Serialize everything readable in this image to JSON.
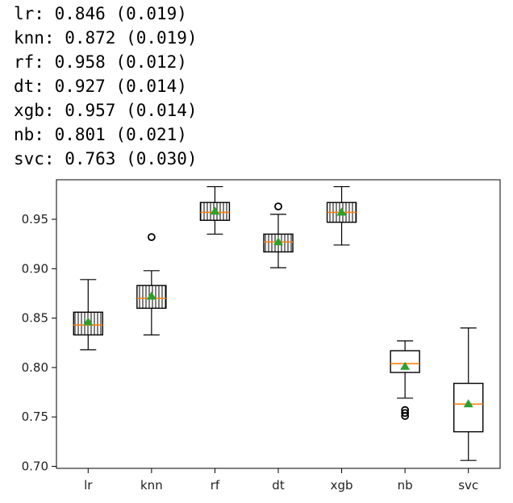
{
  "output_lines": [
    "lr: 0.846 (0.019)",
    "knn: 0.872 (0.019)",
    "rf: 0.958 (0.012)",
    "dt: 0.927 (0.014)",
    "xgb: 0.957 (0.014)",
    "nb: 0.801 (0.021)",
    "svc: 0.763 (0.030)"
  ],
  "chart_data": {
    "type": "boxplot",
    "title": "",
    "xlabel": "",
    "ylabel": "",
    "categories": [
      "lr",
      "knn",
      "rf",
      "dt",
      "xgb",
      "nb",
      "svc"
    ],
    "ylim": [
      0.698,
      0.99
    ],
    "yticks": [
      "0.70",
      "0.75",
      "0.80",
      "0.85",
      "0.90",
      "0.95"
    ],
    "grid": false,
    "boxes": [
      {
        "name": "lr",
        "whislo": 0.818,
        "q1": 0.833,
        "med": 0.843,
        "q3": 0.856,
        "whishi": 0.889,
        "mean": 0.846,
        "fliers": []
      },
      {
        "name": "knn",
        "whislo": 0.833,
        "q1": 0.86,
        "med": 0.87,
        "q3": 0.883,
        "whishi": 0.898,
        "mean": 0.872,
        "fliers": [
          0.932
        ]
      },
      {
        "name": "rf",
        "whislo": 0.935,
        "q1": 0.949,
        "med": 0.957,
        "q3": 0.967,
        "whishi": 0.983,
        "mean": 0.958,
        "fliers": []
      },
      {
        "name": "dt",
        "whislo": 0.901,
        "q1": 0.917,
        "med": 0.927,
        "q3": 0.935,
        "whishi": 0.955,
        "mean": 0.927,
        "fliers": [
          0.963
        ]
      },
      {
        "name": "xgb",
        "whislo": 0.924,
        "q1": 0.947,
        "med": 0.957,
        "q3": 0.967,
        "whishi": 0.983,
        "mean": 0.957,
        "fliers": []
      },
      {
        "name": "nb",
        "whislo": 0.769,
        "q1": 0.795,
        "med": 0.804,
        "q3": 0.817,
        "whishi": 0.827,
        "mean": 0.801,
        "fliers": [
          0.757,
          0.754,
          0.751
        ]
      },
      {
        "name": "svc",
        "whislo": 0.706,
        "q1": 0.735,
        "med": 0.763,
        "q3": 0.784,
        "whishi": 0.84,
        "mean": 0.763,
        "fliers": []
      }
    ],
    "colors": {
      "box": "#000000",
      "median": "#ff7f0e",
      "mean": "#2ca02c",
      "hatch": "#000000"
    }
  }
}
